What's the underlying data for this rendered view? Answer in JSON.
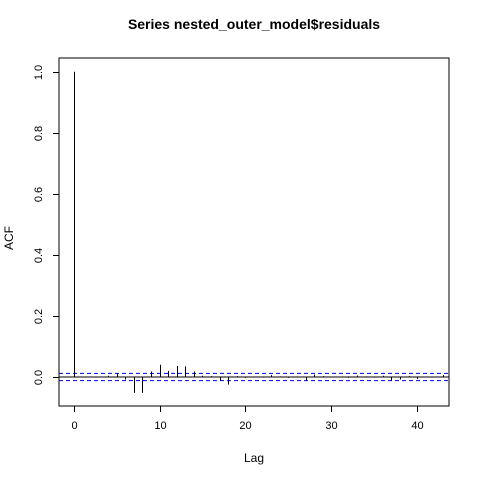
{
  "chart_data": {
    "type": "bar",
    "title": "Series  nested_outer_model$residuals",
    "xlabel": "Lag",
    "ylabel": "ACF",
    "xlim": [
      -1.7,
      43.7
    ],
    "ylim": [
      -0.095,
      1.045
    ],
    "x_ticks": [
      0,
      10,
      20,
      30,
      40
    ],
    "y_ticks": [
      0.0,
      0.2,
      0.4,
      0.6,
      0.8,
      1.0
    ],
    "x_tick_labels": [
      "0",
      "10",
      "20",
      "30",
      "40"
    ],
    "y_tick_labels": [
      "0.0",
      "0.2",
      "0.4",
      "0.6",
      "0.8",
      "1.0"
    ],
    "confidence_band": [
      -0.012,
      0.012
    ],
    "band_color": "#0000ff",
    "lags": [
      0,
      1,
      2,
      3,
      4,
      5,
      6,
      7,
      8,
      9,
      10,
      11,
      12,
      13,
      14,
      15,
      16,
      17,
      18,
      19,
      20,
      21,
      22,
      23,
      24,
      25,
      26,
      27,
      28,
      29,
      30,
      31,
      32,
      33,
      34,
      35,
      36,
      37,
      38,
      39,
      40,
      41,
      42,
      43
    ],
    "values": [
      1.0,
      0.0,
      -0.001,
      0.0,
      0.004,
      0.012,
      -0.008,
      -0.052,
      -0.052,
      0.018,
      0.04,
      0.02,
      0.036,
      0.035,
      0.018,
      0.004,
      0.003,
      -0.012,
      -0.025,
      0.003,
      -0.003,
      0.001,
      -0.002,
      0.006,
      0.002,
      -0.003,
      -0.001,
      -0.012,
      0.008,
      0.003,
      0.0,
      -0.001,
      -0.003,
      0.005,
      0.002,
      -0.002,
      0.004,
      -0.012,
      -0.008,
      0.003,
      -0.006,
      0.0,
      0.0,
      0.006
    ]
  }
}
